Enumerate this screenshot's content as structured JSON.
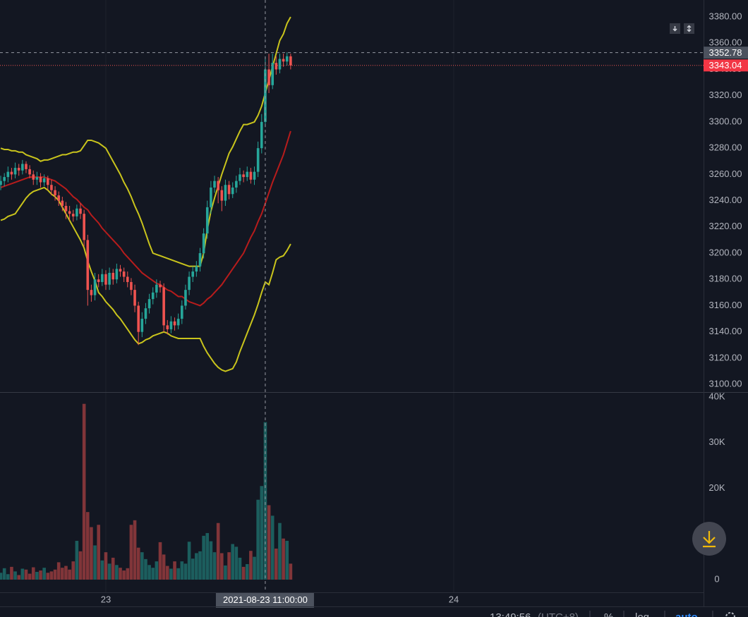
{
  "chart_data": {
    "type": "candlestick",
    "up_color": "#26a69a",
    "down_color": "#ef5350",
    "x": [
      "2021-08-22 16:45",
      "2021-08-22 17:00",
      "2021-08-22 17:15",
      "2021-08-22 17:30",
      "2021-08-22 17:45",
      "2021-08-22 18:00",
      "2021-08-22 18:15",
      "2021-08-22 18:30",
      "2021-08-22 18:45",
      "2021-08-22 19:00",
      "2021-08-22 19:15",
      "2021-08-22 19:30",
      "2021-08-22 19:45",
      "2021-08-22 20:00",
      "2021-08-22 20:15",
      "2021-08-22 20:30",
      "2021-08-22 20:45",
      "2021-08-22 21:00",
      "2021-08-22 21:15",
      "2021-08-22 21:30",
      "2021-08-22 21:45",
      "2021-08-22 22:00",
      "2021-08-22 22:15",
      "2021-08-22 22:30",
      "2021-08-22 22:45",
      "2021-08-22 23:00",
      "2021-08-22 23:15",
      "2021-08-22 23:30",
      "2021-08-22 23:45",
      "2021-08-23 00:00",
      "2021-08-23 00:15",
      "2021-08-23 00:30",
      "2021-08-23 00:45",
      "2021-08-23 01:00",
      "2021-08-23 01:15",
      "2021-08-23 01:30",
      "2021-08-23 01:45",
      "2021-08-23 02:00",
      "2021-08-23 02:15",
      "2021-08-23 02:30",
      "2021-08-23 02:45",
      "2021-08-23 03:00",
      "2021-08-23 03:15",
      "2021-08-23 03:30",
      "2021-08-23 03:45",
      "2021-08-23 04:00",
      "2021-08-23 04:15",
      "2021-08-23 04:30",
      "2021-08-23 04:45",
      "2021-08-23 05:00",
      "2021-08-23 05:15",
      "2021-08-23 05:30",
      "2021-08-23 05:45",
      "2021-08-23 06:00",
      "2021-08-23 06:15",
      "2021-08-23 06:30",
      "2021-08-23 06:45",
      "2021-08-23 07:00",
      "2021-08-23 07:15",
      "2021-08-23 07:30",
      "2021-08-23 07:45",
      "2021-08-23 08:00",
      "2021-08-23 08:15",
      "2021-08-23 08:30",
      "2021-08-23 08:45",
      "2021-08-23 09:00",
      "2021-08-23 09:15",
      "2021-08-23 09:30",
      "2021-08-23 09:45",
      "2021-08-23 10:00",
      "2021-08-23 10:15",
      "2021-08-23 10:30",
      "2021-08-23 10:45",
      "2021-08-23 11:00",
      "2021-08-23 11:15",
      "2021-08-23 11:30",
      "2021-08-23 11:45",
      "2021-08-23 12:00",
      "2021-08-23 12:15",
      "2021-08-23 12:30",
      "2021-08-23 12:45"
    ],
    "open": [
      3252,
      3255,
      3258,
      3262,
      3260,
      3265,
      3263,
      3268,
      3264,
      3260,
      3256,
      3258,
      3254,
      3257,
      3252,
      3248,
      3244,
      3240,
      3236,
      3232,
      3230,
      3228,
      3234,
      3230,
      3210,
      3172,
      3168,
      3180,
      3178,
      3184,
      3176,
      3185,
      3180,
      3188,
      3186,
      3182,
      3178,
      3172,
      3160,
      3140,
      3150,
      3158,
      3165,
      3170,
      3176,
      3174,
      3145,
      3142,
      3148,
      3145,
      3150,
      3160,
      3172,
      3182,
      3186,
      3190,
      3200,
      3215,
      3235,
      3250,
      3255,
      3248,
      3240,
      3252,
      3245,
      3250,
      3255,
      3260,
      3258,
      3262,
      3256,
      3262,
      3280,
      3300,
      3340,
      3328,
      3345,
      3340,
      3348,
      3346,
      3350
    ],
    "high": [
      3259,
      3261,
      3266,
      3265,
      3269,
      3268,
      3271,
      3270,
      3267,
      3263,
      3262,
      3261,
      3260,
      3259,
      3256,
      3251,
      3247,
      3243,
      3239,
      3236,
      3233,
      3237,
      3238,
      3233,
      3214,
      3176,
      3185,
      3184,
      3188,
      3187,
      3189,
      3188,
      3192,
      3191,
      3189,
      3186,
      3181,
      3176,
      3163,
      3155,
      3162,
      3169,
      3174,
      3180,
      3179,
      3177,
      3149,
      3152,
      3151,
      3154,
      3164,
      3176,
      3186,
      3190,
      3194,
      3204,
      3219,
      3240,
      3255,
      3259,
      3258,
      3251,
      3256,
      3255,
      3254,
      3259,
      3265,
      3263,
      3266,
      3265,
      3266,
      3285,
      3306,
      3350,
      3352,
      3352,
      3350,
      3352,
      3352,
      3353,
      3352
    ],
    "low": [
      3248,
      3251,
      3254,
      3256,
      3257,
      3259,
      3260,
      3261,
      3257,
      3252,
      3252,
      3250,
      3251,
      3248,
      3244,
      3240,
      3236,
      3232,
      3226,
      3225,
      3224,
      3225,
      3226,
      3205,
      3160,
      3163,
      3164,
      3174,
      3175,
      3172,
      3172,
      3176,
      3177,
      3182,
      3178,
      3174,
      3168,
      3155,
      3130,
      3136,
      3146,
      3154,
      3161,
      3166,
      3170,
      3140,
      3138,
      3139,
      3141,
      3142,
      3146,
      3157,
      3168,
      3178,
      3182,
      3186,
      3196,
      3211,
      3230,
      3246,
      3238,
      3232,
      3236,
      3241,
      3242,
      3246,
      3252,
      3254,
      3255,
      3253,
      3252,
      3258,
      3276,
      3296,
      3322,
      3325,
      3336,
      3337,
      3342,
      3343,
      3340
    ],
    "close": [
      3255,
      3258,
      3262,
      3260,
      3265,
      3263,
      3268,
      3264,
      3260,
      3256,
      3258,
      3254,
      3257,
      3252,
      3248,
      3244,
      3240,
      3236,
      3232,
      3230,
      3228,
      3234,
      3230,
      3210,
      3172,
      3168,
      3180,
      3178,
      3184,
      3176,
      3185,
      3180,
      3188,
      3186,
      3182,
      3178,
      3172,
      3160,
      3140,
      3150,
      3158,
      3165,
      3170,
      3176,
      3174,
      3145,
      3142,
      3148,
      3145,
      3150,
      3160,
      3172,
      3182,
      3186,
      3190,
      3200,
      3215,
      3235,
      3250,
      3255,
      3248,
      3240,
      3252,
      3245,
      3250,
      3255,
      3260,
      3258,
      3262,
      3256,
      3262,
      3280,
      3300,
      3340,
      3328,
      3345,
      3340,
      3348,
      3346,
      3350,
      3343.04
    ],
    "volume": [
      1500,
      2500,
      1200,
      2800,
      1800,
      1000,
      2400,
      2200,
      1300,
      2700,
      1700,
      2000,
      2600,
      1500,
      1800,
      2200,
      3800,
      2600,
      3000,
      2200,
      4000,
      8500,
      6200,
      38500,
      14800,
      11500,
      7500,
      12000,
      4200,
      6000,
      3500,
      4800,
      3200,
      2600,
      2000,
      2500,
      12000,
      13000,
      7000,
      6000,
      4500,
      3200,
      2600,
      4000,
      8200,
      5500,
      3000,
      2400,
      4000,
      2500,
      4000,
      3500,
      8300,
      4600,
      5800,
      6200,
      9600,
      10200,
      8400,
      6000,
      12400,
      5800,
      3100,
      6000,
      7800,
      7200,
      4800,
      2800,
      3400,
      6300,
      5000,
      17500,
      20500,
      34500,
      16300,
      14000,
      6800,
      12400,
      9000,
      8500,
      3500
    ],
    "series": [
      {
        "color": "#c9c41c",
        "values": [
          3280,
          3279,
          3279,
          3278,
          3278,
          3277,
          3277,
          3275,
          3274,
          3273,
          3272,
          3270,
          3271,
          3271,
          3272,
          3273,
          3274,
          3275,
          3275,
          3276,
          3277,
          3277,
          3278,
          3282,
          3286,
          3286,
          3285,
          3284,
          3282,
          3280,
          3275,
          3270,
          3265,
          3260,
          3254,
          3249,
          3243,
          3236,
          3230,
          3223,
          3215,
          3207,
          3200,
          3199,
          3198,
          3197,
          3196,
          3195,
          3194,
          3193,
          3192,
          3191,
          3190,
          3190,
          3190,
          3190,
          3200,
          3218,
          3232,
          3242,
          3251,
          3260,
          3268,
          3276,
          3281,
          3287,
          3293,
          3298,
          3298,
          3299,
          3300,
          3305,
          3312,
          3322,
          3332,
          3342,
          3352,
          3362,
          3367,
          3375,
          3380
        ]
      },
      {
        "color": "#b71c1c",
        "values": [
          3250,
          3251,
          3252,
          3253,
          3254,
          3255,
          3256,
          3257,
          3258,
          3258,
          3258,
          3258,
          3258,
          3257,
          3256,
          3255,
          3253,
          3251,
          3249,
          3246,
          3243,
          3241,
          3238,
          3235,
          3233,
          3229,
          3226,
          3223,
          3219,
          3216,
          3213,
          3210,
          3207,
          3204,
          3200,
          3197,
          3194,
          3191,
          3188,
          3185,
          3183,
          3181,
          3179,
          3177,
          3176,
          3174,
          3172,
          3171,
          3169,
          3167,
          3167,
          3165,
          3163,
          3162,
          3161,
          3160,
          3162,
          3165,
          3167,
          3170,
          3173,
          3176,
          3180,
          3184,
          3188,
          3192,
          3196,
          3200,
          3206,
          3212,
          3217,
          3224,
          3230,
          3238,
          3246,
          3254,
          3261,
          3268,
          3275,
          3284,
          3293
        ]
      },
      {
        "color": "#c9c41c",
        "values": [
          3225,
          3226,
          3228,
          3229,
          3230,
          3234,
          3238,
          3242,
          3245,
          3247,
          3248,
          3249,
          3250,
          3248,
          3245,
          3243,
          3240,
          3235,
          3230,
          3225,
          3220,
          3215,
          3210,
          3204,
          3194,
          3186,
          3179,
          3170,
          3167,
          3163,
          3160,
          3157,
          3153,
          3150,
          3146,
          3142,
          3138,
          3134,
          3131,
          3132,
          3134,
          3135,
          3137,
          3138,
          3139,
          3140,
          3139,
          3137,
          3136,
          3135,
          3135,
          3135,
          3135,
          3135,
          3135,
          3135,
          3129,
          3124,
          3120,
          3116,
          3113,
          3111,
          3110,
          3111,
          3112,
          3117,
          3125,
          3132,
          3139,
          3146,
          3153,
          3161,
          3170,
          3178,
          3176,
          3185,
          3195,
          3197,
          3198,
          3202,
          3207
        ]
      }
    ],
    "xlim": [
      "2021-08-22 16:42",
      "2021-08-24 17:14"
    ],
    "xticks": [
      {
        "value": "2021-08-23 00:00",
        "label": "23"
      },
      {
        "value": "2021-08-24 00:00",
        "label": "24"
      }
    ],
    "ylim": [
      3094.7,
      3392.9
    ],
    "yticks": [
      {
        "value": 3100,
        "label": "3100.00"
      },
      {
        "value": 3120,
        "label": "3120.00"
      },
      {
        "value": 3140,
        "label": "3140.00"
      },
      {
        "value": 3160,
        "label": "3160.00"
      },
      {
        "value": 3180,
        "label": "3180.00"
      },
      {
        "value": 3200,
        "label": "3200.00"
      },
      {
        "value": 3220,
        "label": "3220.00"
      },
      {
        "value": 3240,
        "label": "3240.00"
      },
      {
        "value": 3260,
        "label": "3260.00"
      },
      {
        "value": 3280,
        "label": "3280.00"
      },
      {
        "value": 3300,
        "label": "3300.00"
      },
      {
        "value": 3320,
        "label": "3320.00"
      },
      {
        "value": 3340,
        "label": "3340.00"
      },
      {
        "value": 3360,
        "label": "3360.00"
      },
      {
        "value": 3380,
        "label": "3380.00"
      }
    ],
    "volume_lim": [
      0,
      40000
    ],
    "volume_ticks": [
      0,
      {
        "value": 20000,
        "label": "20K"
      },
      {
        "value": 30000,
        "label": "30K"
      },
      {
        "value": 40000,
        "label": "40K"
      }
    ],
    "crosshair_time": "2021-08-23 11:00:00",
    "crosshair_price": 3352.78
  },
  "status_bar": {
    "time": "13:49:56",
    "timezone": "(UTC+8)",
    "percent": "%",
    "log": "log",
    "auto": "auto"
  }
}
